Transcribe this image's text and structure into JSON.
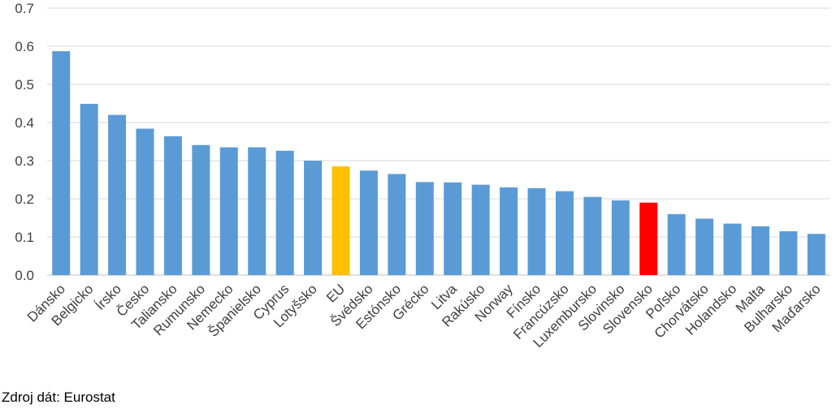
{
  "chart_data": {
    "type": "bar",
    "categories": [
      "Dánsko",
      "Belgicko",
      "Írsko",
      "Česko",
      "Taliansko",
      "Rumunsko",
      "Nemecko",
      "Španielsko",
      "Cyprus",
      "Lotyšsko",
      "EU",
      "Švédsko",
      "Estónsko",
      "Grécko",
      "Litva",
      "Rakúsko",
      "Norway",
      "Fínsko",
      "Francúzsko",
      "Luxembursko",
      "Slovinsko",
      "Slovensko",
      "Poľsko",
      "Chorvátsko",
      "Holandsko",
      "Malta",
      "Bulharsko",
      "Maďarsko"
    ],
    "values": [
      0.587,
      0.449,
      0.42,
      0.384,
      0.364,
      0.341,
      0.335,
      0.335,
      0.326,
      0.3,
      0.285,
      0.274,
      0.265,
      0.244,
      0.243,
      0.237,
      0.23,
      0.228,
      0.22,
      0.205,
      0.196,
      0.19,
      0.16,
      0.148,
      0.135,
      0.128,
      0.115,
      0.108
    ],
    "ylim": [
      0,
      0.7
    ],
    "yticks": [
      "0.0",
      "0.1",
      "0.2",
      "0.3",
      "0.4",
      "0.5",
      "0.6",
      "0.7"
    ],
    "grid": true,
    "colors": {
      "default": "#5B9BD5",
      "EU": "#FFC000",
      "Slovensko": "#FF0000",
      "gridline": "#D9D9D9",
      "axis": "#BFBFBF"
    }
  },
  "source_text": "Zdroj dát: Eurostat"
}
